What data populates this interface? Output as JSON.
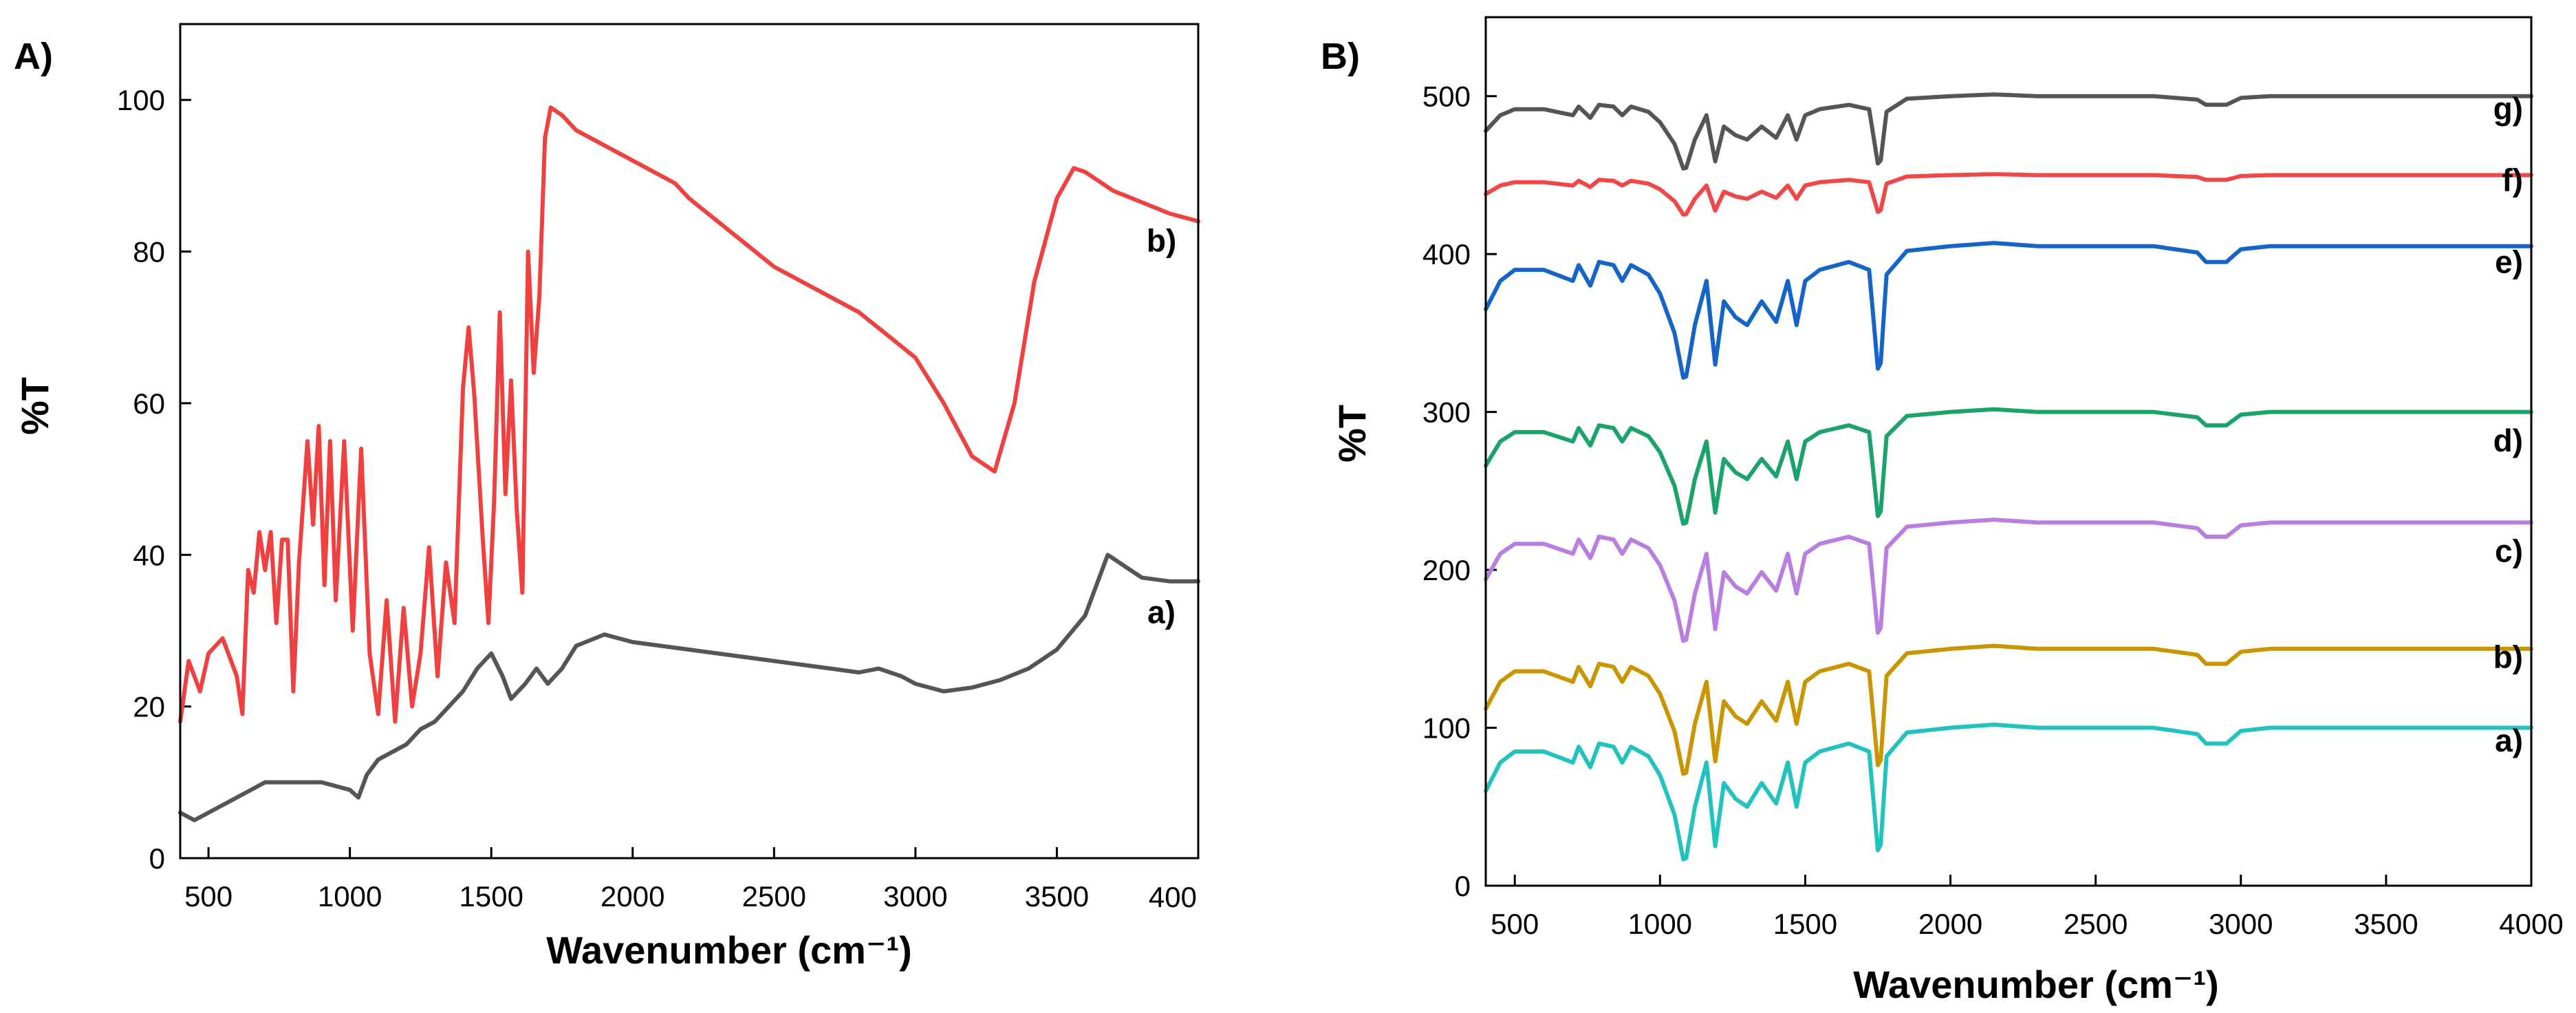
{
  "chart_data": [
    {
      "type": "line",
      "panel_label": "A)",
      "xlabel": "Wavenumber (cm⁻¹)",
      "ylabel": "%T",
      "xlim": [
        400,
        4000
      ],
      "ylim": [
        0,
        110
      ],
      "x_ticks": [
        500,
        1000,
        1500,
        2000,
        2500,
        3000,
        3500
      ],
      "x_tick_labels": [
        "500",
        "1000",
        "1500",
        "2000",
        "2500",
        "3000",
        "3500"
      ],
      "right_edge_label": "400",
      "y_ticks": [
        0,
        20,
        40,
        60,
        80,
        100
      ],
      "y_tick_labels": [
        "0",
        "20",
        "40",
        "60",
        "80",
        "100"
      ],
      "series": [
        {
          "name": "a)",
          "color": "#555555",
          "points": [
            [
              400,
              6
            ],
            [
              450,
              5
            ],
            [
              500,
              6
            ],
            [
              550,
              7
            ],
            [
              600,
              8
            ],
            [
              700,
              10
            ],
            [
              800,
              10
            ],
            [
              900,
              10
            ],
            [
              1000,
              9
            ],
            [
              1030,
              8
            ],
            [
              1060,
              11
            ],
            [
              1100,
              13
            ],
            [
              1150,
              14
            ],
            [
              1200,
              15
            ],
            [
              1250,
              17
            ],
            [
              1300,
              18
            ],
            [
              1350,
              20
            ],
            [
              1400,
              22
            ],
            [
              1450,
              25
            ],
            [
              1500,
              27
            ],
            [
              1540,
              24
            ],
            [
              1570,
              21
            ],
            [
              1620,
              23
            ],
            [
              1660,
              25
            ],
            [
              1700,
              23
            ],
            [
              1750,
              25
            ],
            [
              1800,
              28
            ],
            [
              1900,
              29.5
            ],
            [
              2000,
              28.5
            ],
            [
              2100,
              28
            ],
            [
              2200,
              27.5
            ],
            [
              2300,
              27
            ],
            [
              2400,
              26.5
            ],
            [
              2500,
              26
            ],
            [
              2600,
              25.5
            ],
            [
              2700,
              25
            ],
            [
              2800,
              24.5
            ],
            [
              2870,
              25
            ],
            [
              2950,
              24
            ],
            [
              3000,
              23
            ],
            [
              3100,
              22
            ],
            [
              3200,
              22.5
            ],
            [
              3300,
              23.5
            ],
            [
              3400,
              25
            ],
            [
              3500,
              27.5
            ],
            [
              3600,
              32
            ],
            [
              3650,
              37
            ],
            [
              3680,
              40
            ],
            [
              3720,
              39
            ],
            [
              3800,
              37
            ],
            [
              3900,
              36.5
            ],
            [
              4000,
              36.5
            ]
          ],
          "label_x": 3870,
          "label_y": 31
        },
        {
          "name": "b)",
          "color": "#f04141",
          "points": [
            [
              400,
              18
            ],
            [
              430,
              26
            ],
            [
              470,
              22
            ],
            [
              500,
              27
            ],
            [
              550,
              29
            ],
            [
              600,
              24
            ],
            [
              620,
              19
            ],
            [
              640,
              38
            ],
            [
              660,
              35
            ],
            [
              680,
              43
            ],
            [
              700,
              38
            ],
            [
              720,
              43
            ],
            [
              740,
              31
            ],
            [
              760,
              42
            ],
            [
              780,
              42
            ],
            [
              800,
              22
            ],
            [
              820,
              39
            ],
            [
              850,
              55
            ],
            [
              870,
              44
            ],
            [
              890,
              57
            ],
            [
              910,
              36
            ],
            [
              930,
              55
            ],
            [
              950,
              34
            ],
            [
              980,
              55
            ],
            [
              1010,
              30
            ],
            [
              1040,
              54
            ],
            [
              1070,
              27
            ],
            [
              1100,
              19
            ],
            [
              1130,
              34
            ],
            [
              1160,
              18
            ],
            [
              1190,
              33
            ],
            [
              1220,
              20
            ],
            [
              1250,
              27
            ],
            [
              1280,
              41
            ],
            [
              1310,
              24
            ],
            [
              1340,
              39
            ],
            [
              1370,
              31
            ],
            [
              1400,
              62
            ],
            [
              1420,
              70
            ],
            [
              1440,
              61
            ],
            [
              1470,
              42
            ],
            [
              1490,
              31
            ],
            [
              1510,
              47
            ],
            [
              1530,
              72
            ],
            [
              1550,
              48
            ],
            [
              1570,
              63
            ],
            [
              1590,
              46
            ],
            [
              1610,
              35
            ],
            [
              1630,
              80
            ],
            [
              1650,
              64
            ],
            [
              1670,
              74
            ],
            [
              1690,
              95
            ],
            [
              1710,
              99
            ],
            [
              1750,
              98
            ],
            [
              1800,
              96
            ],
            [
              1900,
              94
            ],
            [
              2000,
              92
            ],
            [
              2100,
              90
            ],
            [
              2150,
              89
            ],
            [
              2200,
              87
            ],
            [
              2300,
              84
            ],
            [
              2400,
              81
            ],
            [
              2500,
              78
            ],
            [
              2600,
              76
            ],
            [
              2700,
              74
            ],
            [
              2800,
              72
            ],
            [
              2900,
              69
            ],
            [
              3000,
              66
            ],
            [
              3100,
              60
            ],
            [
              3200,
              53
            ],
            [
              3280,
              51
            ],
            [
              3350,
              60
            ],
            [
              3420,
              76
            ],
            [
              3500,
              87
            ],
            [
              3560,
              91
            ],
            [
              3600,
              90.5
            ],
            [
              3700,
              88
            ],
            [
              3800,
              86.5
            ],
            [
              3900,
              85
            ],
            [
              4000,
              84
            ]
          ],
          "label_x": 3870,
          "label_y": 80
        }
      ]
    },
    {
      "type": "line",
      "panel_label": "B)",
      "xlabel": "Wavenumber (cm⁻¹)",
      "ylabel": "%T",
      "xlim": [
        400,
        4000
      ],
      "ylim": [
        0,
        550
      ],
      "x_ticks": [
        500,
        1000,
        1500,
        2000,
        2500,
        3000,
        3500,
        4000
      ],
      "x_tick_labels": [
        "500",
        "1000",
        "1500",
        "2000",
        "2500",
        "3000",
        "3500",
        "4000"
      ],
      "y_ticks": [
        0,
        100,
        200,
        300,
        400,
        500
      ],
      "y_tick_labels": [
        "0",
        "100",
        "200",
        "300",
        "400",
        "500"
      ],
      "series": [
        {
          "name": "a)",
          "color": "#22c3be",
          "baseline": 100,
          "depth": 1.0
        },
        {
          "name": "b)",
          "color": "#c99500",
          "baseline": 150,
          "depth": 0.95
        },
        {
          "name": "c)",
          "color": "#b87fe0",
          "baseline": 230,
          "depth": 0.9
        },
        {
          "name": "d)",
          "color": "#1aa36b",
          "baseline": 300,
          "depth": 0.85
        },
        {
          "name": "e)",
          "color": "#1565c9",
          "baseline": 405,
          "depth": 1.0
        },
        {
          "name": "f)",
          "color": "#f04848",
          "baseline": 450,
          "depth": 0.3
        },
        {
          "name": "g)",
          "color": "#555555",
          "baseline": 500,
          "depth": 0.55
        }
      ],
      "series_label_values": [
        92,
        145,
        212,
        282,
        395,
        447,
        492
      ],
      "profile_offsets": [
        [
          400,
          -40
        ],
        [
          450,
          -22
        ],
        [
          500,
          -15
        ],
        [
          600,
          -15
        ],
        [
          700,
          -22
        ],
        [
          720,
          -12
        ],
        [
          760,
          -25
        ],
        [
          790,
          -10
        ],
        [
          840,
          -12
        ],
        [
          870,
          -22
        ],
        [
          900,
          -12
        ],
        [
          960,
          -18
        ],
        [
          1000,
          -30
        ],
        [
          1050,
          -55
        ],
        [
          1085,
          -88
        ],
        [
          1120,
          -50
        ],
        [
          1160,
          -22
        ],
        [
          1190,
          -75
        ],
        [
          1220,
          -35
        ],
        [
          1260,
          -45
        ],
        [
          1300,
          -50
        ],
        [
          1350,
          -35
        ],
        [
          1400,
          -48
        ],
        [
          1440,
          -22
        ],
        [
          1470,
          -50
        ],
        [
          1500,
          -22
        ],
        [
          1550,
          -15
        ],
        [
          1650,
          -10
        ],
        [
          1720,
          -15
        ],
        [
          1755,
          -88
        ],
        [
          1780,
          -18
        ],
        [
          1850,
          -3
        ],
        [
          2000,
          0
        ],
        [
          2150,
          2
        ],
        [
          2300,
          0
        ],
        [
          2500,
          0
        ],
        [
          2700,
          0
        ],
        [
          2850,
          -4
        ],
        [
          2880,
          -10
        ],
        [
          2950,
          -10
        ],
        [
          3000,
          -2
        ],
        [
          3100,
          0
        ],
        [
          3500,
          0
        ],
        [
          4000,
          0
        ]
      ]
    }
  ]
}
